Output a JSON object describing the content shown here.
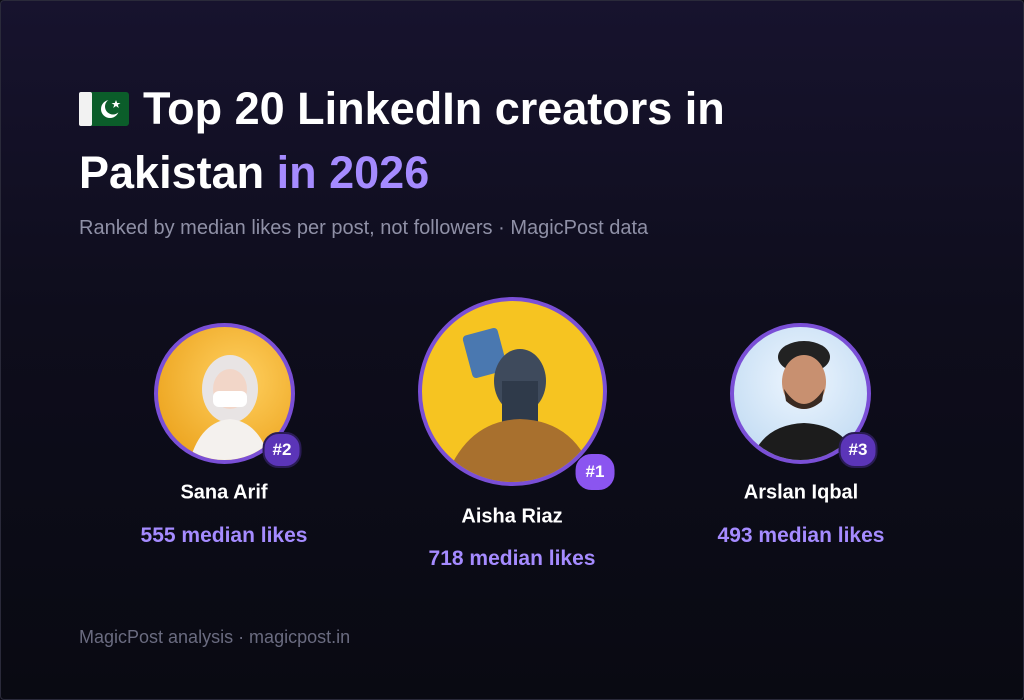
{
  "header": {
    "title": "Top 20 LinkedIn creators in Pakistan",
    "title_highlight": "in 2026",
    "subtitle": "Ranked by median likes per post, not followers · MagicPost data"
  },
  "podium": [
    {
      "rank": "#2",
      "name": "Sana Arif",
      "likes": "555 median likes"
    },
    {
      "rank": "#1",
      "name": "Aisha Riaz",
      "likes": "718 median likes"
    },
    {
      "rank": "#3",
      "name": "Arslan Iqbal",
      "likes": "493 median likes"
    }
  ],
  "footer": "MagicPost analysis · magicpost.in"
}
